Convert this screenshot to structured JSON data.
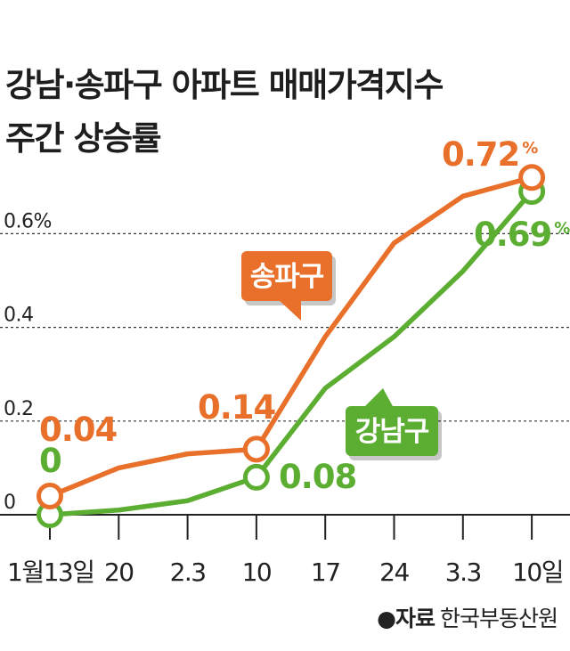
{
  "chart_data": {
    "type": "line",
    "title": [
      "강남·송파구 아파트 매매가격지수",
      "주간 상승률"
    ],
    "categories": [
      "1월13일",
      "20",
      "2.3",
      "10",
      "17",
      "24",
      "3.3",
      "10일"
    ],
    "y_tick_labels": [
      "0",
      "0.2",
      "0.4",
      "0.6%"
    ],
    "y_ticks": [
      0,
      0.2,
      0.4,
      0.6
    ],
    "ylim": [
      0,
      0.72
    ],
    "grid": "horizontal-dashed",
    "series": [
      {
        "name": "송파구",
        "color": "#e8702a",
        "values": [
          0.04,
          0.1,
          0.13,
          0.14,
          0.38,
          0.58,
          0.68,
          0.72
        ],
        "labels": [
          {
            "index": 0,
            "text": "0.04"
          },
          {
            "index": 3,
            "text": "0.14"
          },
          {
            "index": 7,
            "text": "0.72",
            "unit": "%"
          }
        ]
      },
      {
        "name": "강남구",
        "color": "#5cae32",
        "values": [
          0.0,
          0.01,
          0.03,
          0.08,
          0.27,
          0.38,
          0.52,
          0.69
        ],
        "labels": [
          {
            "index": 0,
            "text": "0"
          },
          {
            "index": 3,
            "text": "0.08"
          },
          {
            "index": 7,
            "text": "0.69",
            "unit": "%"
          }
        ]
      }
    ],
    "source_label": "●자료",
    "source_name": "한국부동산원"
  }
}
